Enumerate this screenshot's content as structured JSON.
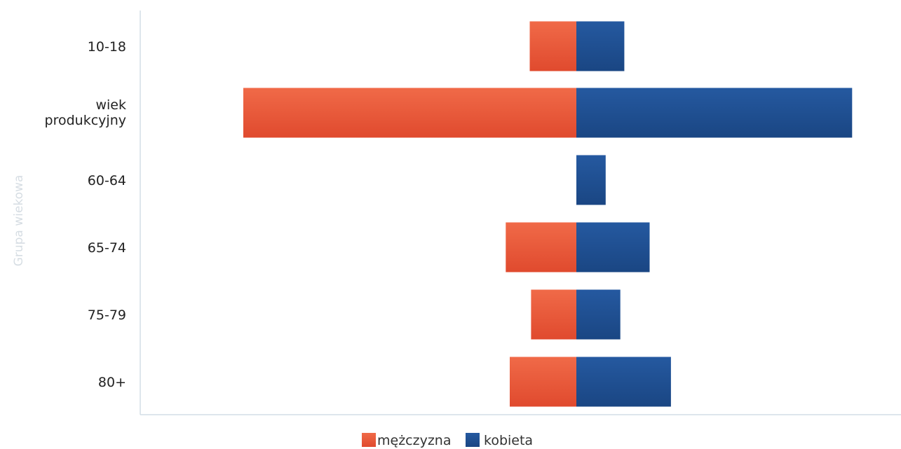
{
  "chart_data": {
    "type": "bar",
    "orientation": "horizontal",
    "stacked": "diverging",
    "ylabel": "Grupa wiekowa",
    "xlabel": "",
    "categories": [
      "10-18",
      "wiek produkcyjny",
      "60-64",
      "65-74",
      "75-79",
      "80+"
    ],
    "series": [
      {
        "name": "mężczyzna",
        "color": "#e8553a",
        "values": [
          -3.5,
          -25,
          0,
          -5.3,
          -3.4,
          -5
        ]
      },
      {
        "name": "kobieta",
        "color": "#1f4f8f",
        "values": [
          3.6,
          20.7,
          2.2,
          5.5,
          3.3,
          7.1
        ]
      }
    ],
    "grid": false,
    "legend": "bottom"
  }
}
